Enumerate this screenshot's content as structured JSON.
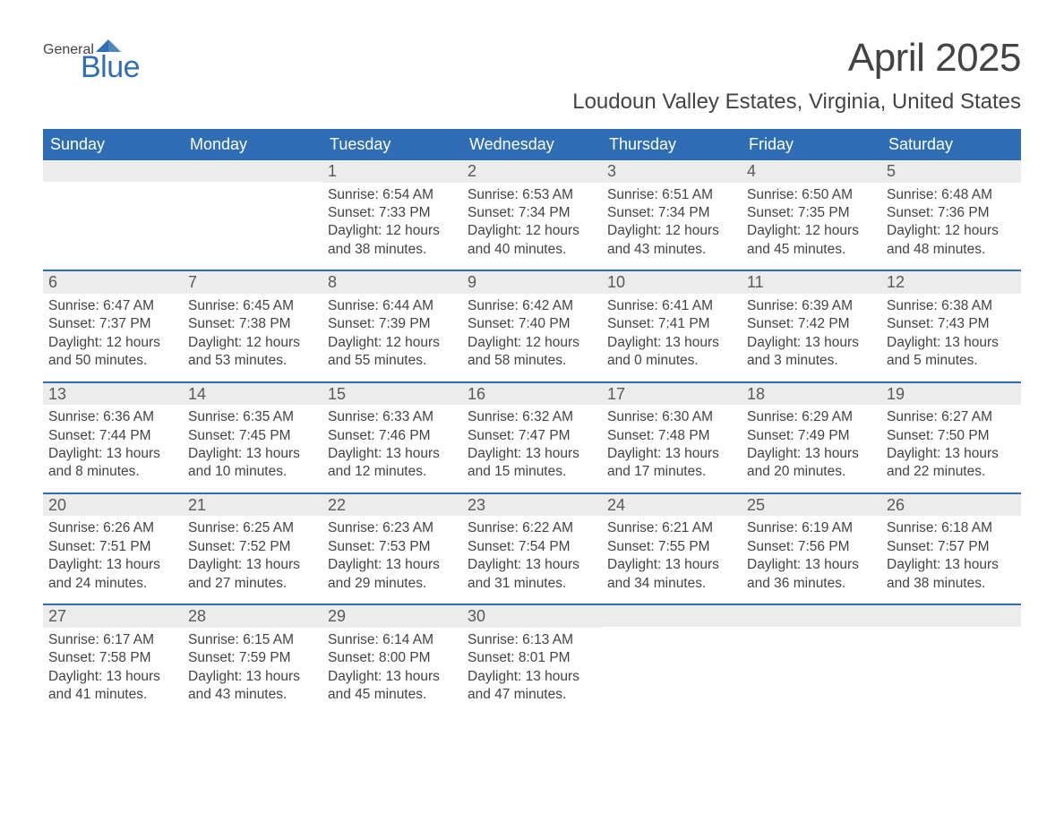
{
  "logo": {
    "general": "General",
    "blue": "Blue",
    "mark_color": "#2f6eb5"
  },
  "title": "April 2025",
  "location": "Loudoun Valley Estates, Virginia, United States",
  "colors": {
    "header_bg": "#2f6eb5",
    "header_text": "#ffffff",
    "date_bg": "#ececec",
    "text": "#434343",
    "week_border": "#2f6eb5"
  },
  "days_of_week": [
    "Sunday",
    "Monday",
    "Tuesday",
    "Wednesday",
    "Thursday",
    "Friday",
    "Saturday"
  ],
  "weeks": [
    [
      {
        "date": "",
        "sunrise": "",
        "sunset": "",
        "daylight1": "",
        "daylight2": ""
      },
      {
        "date": "",
        "sunrise": "",
        "sunset": "",
        "daylight1": "",
        "daylight2": ""
      },
      {
        "date": "1",
        "sunrise": "Sunrise: 6:54 AM",
        "sunset": "Sunset: 7:33 PM",
        "daylight1": "Daylight: 12 hours",
        "daylight2": "and 38 minutes."
      },
      {
        "date": "2",
        "sunrise": "Sunrise: 6:53 AM",
        "sunset": "Sunset: 7:34 PM",
        "daylight1": "Daylight: 12 hours",
        "daylight2": "and 40 minutes."
      },
      {
        "date": "3",
        "sunrise": "Sunrise: 6:51 AM",
        "sunset": "Sunset: 7:34 PM",
        "daylight1": "Daylight: 12 hours",
        "daylight2": "and 43 minutes."
      },
      {
        "date": "4",
        "sunrise": "Sunrise: 6:50 AM",
        "sunset": "Sunset: 7:35 PM",
        "daylight1": "Daylight: 12 hours",
        "daylight2": "and 45 minutes."
      },
      {
        "date": "5",
        "sunrise": "Sunrise: 6:48 AM",
        "sunset": "Sunset: 7:36 PM",
        "daylight1": "Daylight: 12 hours",
        "daylight2": "and 48 minutes."
      }
    ],
    [
      {
        "date": "6",
        "sunrise": "Sunrise: 6:47 AM",
        "sunset": "Sunset: 7:37 PM",
        "daylight1": "Daylight: 12 hours",
        "daylight2": "and 50 minutes."
      },
      {
        "date": "7",
        "sunrise": "Sunrise: 6:45 AM",
        "sunset": "Sunset: 7:38 PM",
        "daylight1": "Daylight: 12 hours",
        "daylight2": "and 53 minutes."
      },
      {
        "date": "8",
        "sunrise": "Sunrise: 6:44 AM",
        "sunset": "Sunset: 7:39 PM",
        "daylight1": "Daylight: 12 hours",
        "daylight2": "and 55 minutes."
      },
      {
        "date": "9",
        "sunrise": "Sunrise: 6:42 AM",
        "sunset": "Sunset: 7:40 PM",
        "daylight1": "Daylight: 12 hours",
        "daylight2": "and 58 minutes."
      },
      {
        "date": "10",
        "sunrise": "Sunrise: 6:41 AM",
        "sunset": "Sunset: 7:41 PM",
        "daylight1": "Daylight: 13 hours",
        "daylight2": "and 0 minutes."
      },
      {
        "date": "11",
        "sunrise": "Sunrise: 6:39 AM",
        "sunset": "Sunset: 7:42 PM",
        "daylight1": "Daylight: 13 hours",
        "daylight2": "and 3 minutes."
      },
      {
        "date": "12",
        "sunrise": "Sunrise: 6:38 AM",
        "sunset": "Sunset: 7:43 PM",
        "daylight1": "Daylight: 13 hours",
        "daylight2": "and 5 minutes."
      }
    ],
    [
      {
        "date": "13",
        "sunrise": "Sunrise: 6:36 AM",
        "sunset": "Sunset: 7:44 PM",
        "daylight1": "Daylight: 13 hours",
        "daylight2": "and 8 minutes."
      },
      {
        "date": "14",
        "sunrise": "Sunrise: 6:35 AM",
        "sunset": "Sunset: 7:45 PM",
        "daylight1": "Daylight: 13 hours",
        "daylight2": "and 10 minutes."
      },
      {
        "date": "15",
        "sunrise": "Sunrise: 6:33 AM",
        "sunset": "Sunset: 7:46 PM",
        "daylight1": "Daylight: 13 hours",
        "daylight2": "and 12 minutes."
      },
      {
        "date": "16",
        "sunrise": "Sunrise: 6:32 AM",
        "sunset": "Sunset: 7:47 PM",
        "daylight1": "Daylight: 13 hours",
        "daylight2": "and 15 minutes."
      },
      {
        "date": "17",
        "sunrise": "Sunrise: 6:30 AM",
        "sunset": "Sunset: 7:48 PM",
        "daylight1": "Daylight: 13 hours",
        "daylight2": "and 17 minutes."
      },
      {
        "date": "18",
        "sunrise": "Sunrise: 6:29 AM",
        "sunset": "Sunset: 7:49 PM",
        "daylight1": "Daylight: 13 hours",
        "daylight2": "and 20 minutes."
      },
      {
        "date": "19",
        "sunrise": "Sunrise: 6:27 AM",
        "sunset": "Sunset: 7:50 PM",
        "daylight1": "Daylight: 13 hours",
        "daylight2": "and 22 minutes."
      }
    ],
    [
      {
        "date": "20",
        "sunrise": "Sunrise: 6:26 AM",
        "sunset": "Sunset: 7:51 PM",
        "daylight1": "Daylight: 13 hours",
        "daylight2": "and 24 minutes."
      },
      {
        "date": "21",
        "sunrise": "Sunrise: 6:25 AM",
        "sunset": "Sunset: 7:52 PM",
        "daylight1": "Daylight: 13 hours",
        "daylight2": "and 27 minutes."
      },
      {
        "date": "22",
        "sunrise": "Sunrise: 6:23 AM",
        "sunset": "Sunset: 7:53 PM",
        "daylight1": "Daylight: 13 hours",
        "daylight2": "and 29 minutes."
      },
      {
        "date": "23",
        "sunrise": "Sunrise: 6:22 AM",
        "sunset": "Sunset: 7:54 PM",
        "daylight1": "Daylight: 13 hours",
        "daylight2": "and 31 minutes."
      },
      {
        "date": "24",
        "sunrise": "Sunrise: 6:21 AM",
        "sunset": "Sunset: 7:55 PM",
        "daylight1": "Daylight: 13 hours",
        "daylight2": "and 34 minutes."
      },
      {
        "date": "25",
        "sunrise": "Sunrise: 6:19 AM",
        "sunset": "Sunset: 7:56 PM",
        "daylight1": "Daylight: 13 hours",
        "daylight2": "and 36 minutes."
      },
      {
        "date": "26",
        "sunrise": "Sunrise: 6:18 AM",
        "sunset": "Sunset: 7:57 PM",
        "daylight1": "Daylight: 13 hours",
        "daylight2": "and 38 minutes."
      }
    ],
    [
      {
        "date": "27",
        "sunrise": "Sunrise: 6:17 AM",
        "sunset": "Sunset: 7:58 PM",
        "daylight1": "Daylight: 13 hours",
        "daylight2": "and 41 minutes."
      },
      {
        "date": "28",
        "sunrise": "Sunrise: 6:15 AM",
        "sunset": "Sunset: 7:59 PM",
        "daylight1": "Daylight: 13 hours",
        "daylight2": "and 43 minutes."
      },
      {
        "date": "29",
        "sunrise": "Sunrise: 6:14 AM",
        "sunset": "Sunset: 8:00 PM",
        "daylight1": "Daylight: 13 hours",
        "daylight2": "and 45 minutes."
      },
      {
        "date": "30",
        "sunrise": "Sunrise: 6:13 AM",
        "sunset": "Sunset: 8:01 PM",
        "daylight1": "Daylight: 13 hours",
        "daylight2": "and 47 minutes."
      },
      {
        "date": "",
        "sunrise": "",
        "sunset": "",
        "daylight1": "",
        "daylight2": ""
      },
      {
        "date": "",
        "sunrise": "",
        "sunset": "",
        "daylight1": "",
        "daylight2": ""
      },
      {
        "date": "",
        "sunrise": "",
        "sunset": "",
        "daylight1": "",
        "daylight2": ""
      }
    ]
  ]
}
